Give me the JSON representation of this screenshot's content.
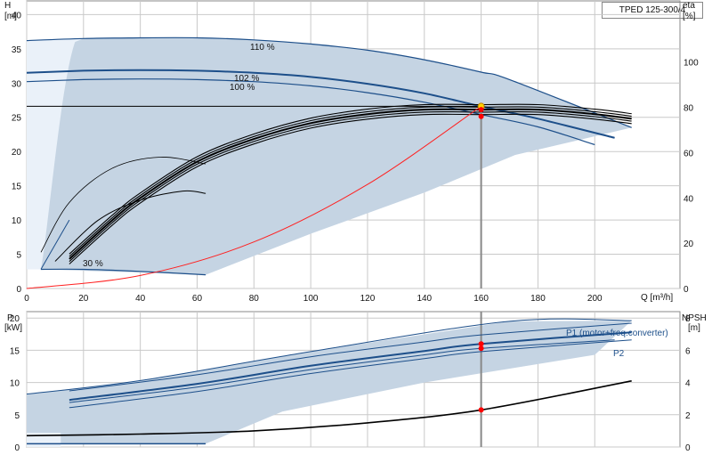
{
  "title": "TPED 125-300/4",
  "colors": {
    "envelope": "#c5d4e3",
    "envelope_light": "#eaf1f9",
    "curve_blue": "#1d4f8a",
    "curve_black": "#000000",
    "system_curve": "#ff2020",
    "duty_point": "#ffd400",
    "marker_red": "#ff0000"
  },
  "top_axes": {
    "y_left_label": "H",
    "y_left_unit": "[m]",
    "y_right_label": "eta",
    "y_right_unit": "[%]",
    "x_label": "Q [m³/h]",
    "x_ticks": [
      "0",
      "20",
      "40",
      "60",
      "80",
      "100",
      "120",
      "140",
      "160",
      "180",
      "200"
    ],
    "y_left_ticks": [
      "0",
      "5",
      "10",
      "15",
      "20",
      "25",
      "30",
      "35",
      "40"
    ],
    "y_right_ticks": [
      "0",
      "20",
      "40",
      "60",
      "80",
      "100"
    ]
  },
  "bottom_axes": {
    "y_left_label": "P",
    "y_left_unit": "[kW]",
    "y_right_label": "NPSH",
    "y_right_unit": "[m]",
    "y_left_ticks": [
      "0",
      "5",
      "10",
      "15",
      "20"
    ],
    "y_right_ticks": [
      "0",
      "2",
      "4",
      "6",
      "8"
    ]
  },
  "chart_data": [
    {
      "type": "line",
      "panel": "head",
      "xlabel": "Q [m³/h]",
      "ylabel": "H [m]",
      "y2label": "eta [%]",
      "xlim": [
        0,
        230
      ],
      "ylim": [
        0,
        42
      ],
      "y2lim": [
        0,
        127
      ],
      "grid": true,
      "series": [
        {
          "name": "110 %",
          "x": [
            0,
            20,
            40,
            60,
            80,
            100,
            120,
            140,
            160,
            170,
            213
          ],
          "y": [
            36.2,
            36.5,
            36.6,
            36.6,
            36.3,
            35.7,
            34.8,
            33.4,
            31.6,
            30.5,
            23.5
          ]
        },
        {
          "name": "102 %",
          "x": [
            0,
            20,
            40,
            60,
            80,
            100,
            120,
            140,
            160,
            180,
            207
          ],
          "y": [
            31.5,
            31.8,
            31.9,
            31.8,
            31.5,
            30.9,
            29.9,
            28.5,
            26.6,
            24.8,
            22.0
          ]
        },
        {
          "name": "100 %",
          "x": [
            0,
            20,
            40,
            60,
            80,
            100,
            120,
            140,
            160,
            180,
            200
          ],
          "y": [
            30.2,
            30.5,
            30.6,
            30.5,
            30.2,
            29.6,
            28.6,
            27.2,
            25.4,
            23.6,
            21.0
          ]
        },
        {
          "name": "30 %",
          "x": [
            5,
            20,
            40,
            63
          ],
          "y": [
            2.8,
            2.8,
            2.5,
            2.0
          ]
        },
        {
          "name": "eta",
          "axis": "y2",
          "x": [
            15,
            30,
            40,
            60,
            80,
            100,
            120,
            140,
            160,
            180,
            200,
            213
          ],
          "y": [
            13,
            30,
            40,
            56,
            66,
            73,
            77,
            79,
            79,
            79,
            77,
            75
          ]
        },
        {
          "name": "system curve",
          "x": [
            0,
            40,
            80,
            120,
            160
          ],
          "y": [
            0,
            1.9,
            6.8,
            15.2,
            26.6
          ]
        }
      ],
      "duty_point": {
        "x": 160,
        "y": 26.6
      },
      "eta_markers": [
        {
          "x": 160,
          "y": 79
        },
        {
          "x": 160,
          "y": 76
        }
      ],
      "annotations": [
        "110 %",
        "102 %",
        "100 %",
        "30 %"
      ]
    },
    {
      "type": "line",
      "panel": "power",
      "xlim": [
        0,
        230
      ],
      "ylabel": "P [kW]",
      "y2label": "NPSH [m]",
      "ylim": [
        0,
        21
      ],
      "y2lim": [
        0,
        8.4
      ],
      "grid": true,
      "series": [
        {
          "name": "P1 (motor+freq.converter)",
          "x": [
            15,
            60,
            100,
            140,
            160,
            213
          ],
          "y": [
            7.3,
            9.8,
            12.6,
            14.9,
            16.0,
            17.8
          ]
        },
        {
          "name": "P2",
          "x": [
            15,
            60,
            100,
            140,
            160,
            207
          ],
          "y": [
            6.9,
            9.3,
            12.0,
            14.3,
            15.3,
            16.6
          ]
        },
        {
          "name": "NPSH",
          "axis": "y2",
          "x": [
            0,
            40,
            80,
            120,
            160,
            213
          ],
          "y": [
            0.7,
            0.8,
            1.0,
            1.5,
            2.3,
            4.1
          ]
        }
      ],
      "markers": [
        {
          "x": 160,
          "y": 16.0
        },
        {
          "x": 160,
          "y": 15.3
        }
      ],
      "npsh_marker": {
        "x": 160,
        "y": 2.3
      },
      "legend_labels": [
        "P1 (motor+freq.converter)",
        "P2"
      ]
    }
  ]
}
